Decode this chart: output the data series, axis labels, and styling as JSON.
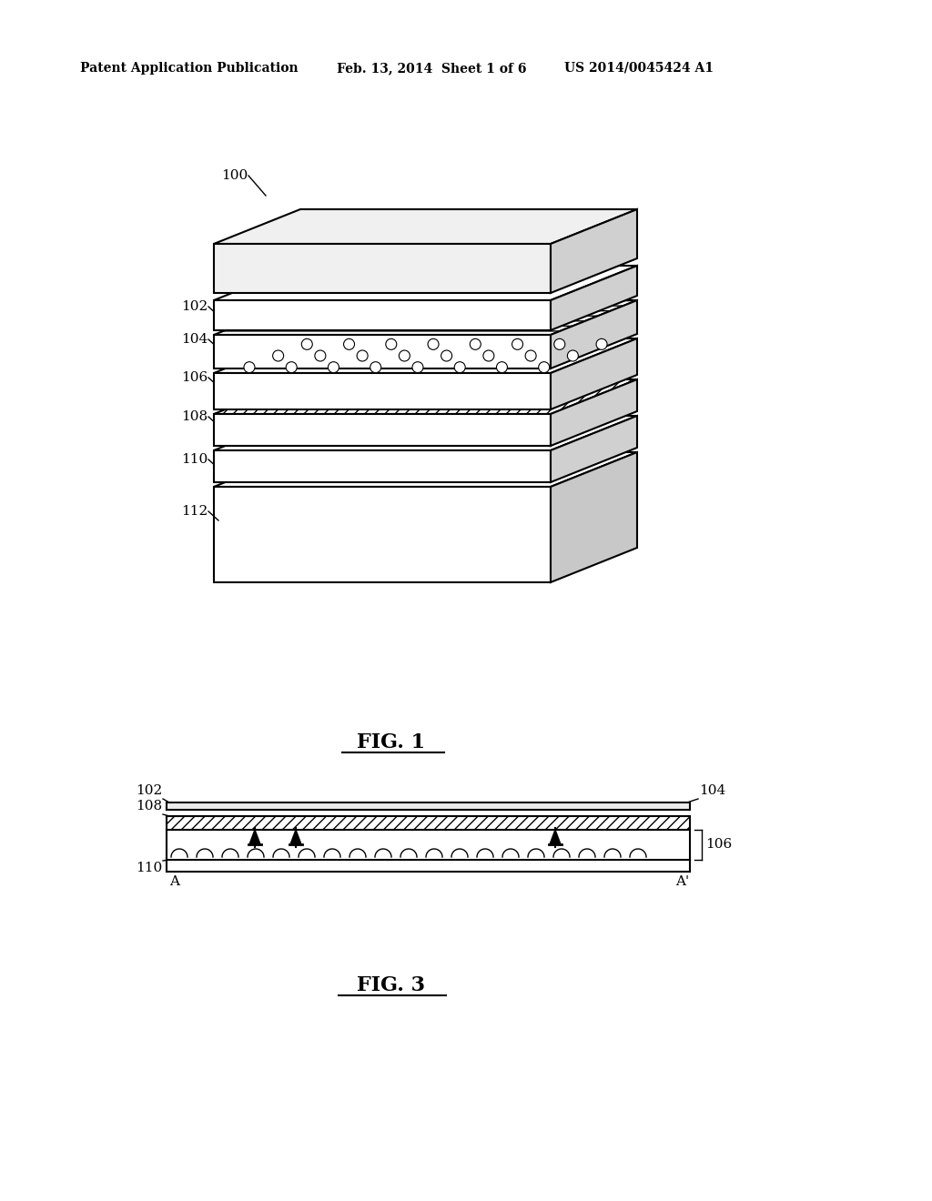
{
  "bg_color": "#ffffff",
  "line_color": "#000000",
  "header_left": "Patent Application Publication",
  "header_mid": "Feb. 13, 2014  Sheet 1 of 6",
  "header_right": "US 2014/0045424 A1",
  "fig1_label": "FIG. 1",
  "fig3_label": "FIG. 3",
  "ref_100": "100",
  "ref_102": "102",
  "ref_104": "104",
  "ref_106": "106",
  "ref_108": "108",
  "ref_110": "110",
  "ref_112": "112"
}
